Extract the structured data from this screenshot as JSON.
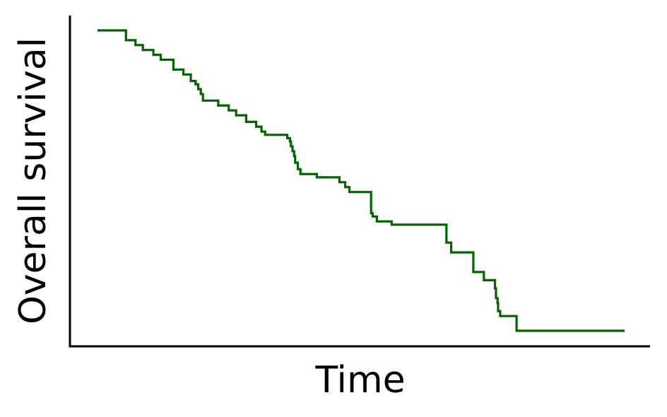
{
  "chart_data": {
    "type": "line",
    "subtype": "kaplan-meier-step",
    "title": "",
    "xlabel": "Time",
    "ylabel": "Overall survival",
    "xlim": [
      0,
      100
    ],
    "ylim": [
      0,
      1
    ],
    "grid": false,
    "legend": "none",
    "x_ticks_shown": false,
    "y_ticks_shown": false,
    "series": [
      {
        "color": "#006400",
        "x": [
          0,
          5.4,
          7.2,
          8.6,
          10.6,
          12.0,
          14.4,
          16.3,
          17.7,
          18.6,
          19.1,
          19.6,
          20.0,
          22.9,
          24.9,
          26.3,
          28.2,
          30.1,
          31.1,
          31.8,
          36.0,
          36.5,
          36.7,
          37.0,
          37.3,
          37.5,
          38.0,
          38.5,
          41.6,
          45.9,
          47.0,
          47.8,
          51.9,
          52.2,
          53.0,
          55.8,
          66.2,
          67.1,
          71.3,
          73.3,
          75.4,
          75.6,
          75.9,
          76.0,
          76.4,
          79.5,
          100.0
        ],
        "y": [
          1.0,
          0.97,
          0.955,
          0.94,
          0.925,
          0.91,
          0.88,
          0.865,
          0.845,
          0.835,
          0.82,
          0.805,
          0.785,
          0.77,
          0.755,
          0.74,
          0.72,
          0.705,
          0.69,
          0.68,
          0.67,
          0.66,
          0.645,
          0.63,
          0.615,
          0.595,
          0.575,
          0.56,
          0.55,
          0.535,
          0.52,
          0.505,
          0.44,
          0.43,
          0.415,
          0.405,
          0.35,
          0.32,
          0.26,
          0.235,
          0.21,
          0.18,
          0.165,
          0.14,
          0.125,
          0.08,
          0.08
        ]
      }
    ]
  }
}
